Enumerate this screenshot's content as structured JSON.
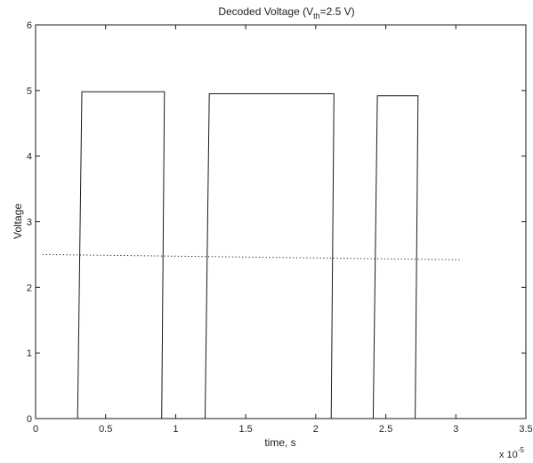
{
  "chart_data": {
    "type": "line",
    "title": {
      "pre": "Decoded Voltage (V",
      "sub": "th",
      "post": "=2.5 V)"
    },
    "xlabel": "time, s",
    "ylabel": "Voltage",
    "x_multiplier": {
      "base": "x 10",
      "exp": "-5"
    },
    "xlim": [
      0,
      3.5
    ],
    "ylim": [
      0,
      6
    ],
    "x_ticks": [
      0,
      0.5,
      1,
      1.5,
      2,
      2.5,
      3,
      3.5
    ],
    "x_tick_labels": [
      "0",
      "0.5",
      "1",
      "1.5",
      "2",
      "2.5",
      "3",
      "3.5"
    ],
    "y_ticks": [
      0,
      1,
      2,
      3,
      4,
      5,
      6
    ],
    "y_tick_labels": [
      "0",
      "1",
      "2",
      "3",
      "4",
      "5",
      "6"
    ],
    "grid": false,
    "series": [
      {
        "style": "solid",
        "color": "#1a1a1a",
        "x": [
          0.3,
          0.33,
          0.92,
          0.9,
          1.21,
          1.24,
          2.13,
          2.11,
          2.41,
          2.44,
          2.73,
          2.71
        ],
        "y": [
          0,
          4.98,
          4.98,
          0,
          0,
          4.95,
          4.95,
          0,
          0,
          4.92,
          4.92,
          0
        ]
      },
      {
        "style": "dotted",
        "color": "#1a1a1a",
        "x": [
          0.05,
          3.03
        ],
        "y": [
          2.5,
          2.42
        ]
      }
    ]
  }
}
